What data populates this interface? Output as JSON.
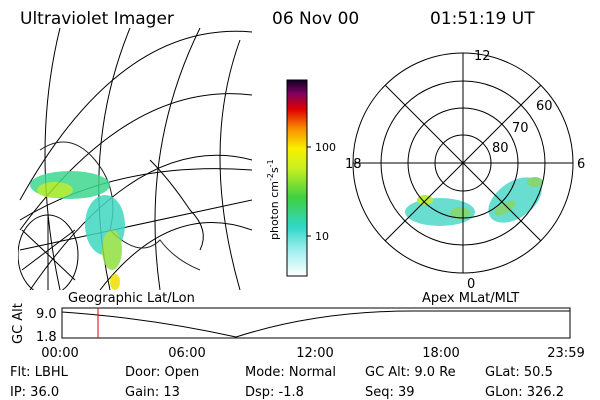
{
  "header": {
    "title": "Ultraviolet Imager",
    "date": "06 Nov 00",
    "time": "01:51:19 UT"
  },
  "colorbar": {
    "label": [
      "photon cm",
      "-2",
      "s",
      "-1"
    ],
    "ticks": [
      "100",
      "10"
    ]
  },
  "polar": {
    "mlt_labels": [
      "12",
      "18",
      "6",
      "0"
    ],
    "lat_labels": [
      "60",
      "70",
      "80"
    ]
  },
  "panels": {
    "left": "Geographic Lat/Lon",
    "right": "Apex MLat/MLT"
  },
  "timeline": {
    "y_label": "GC Alt",
    "y_ticks": [
      "9.0",
      "1.8"
    ],
    "x_ticks": [
      "00:00",
      "06:00",
      "12:00",
      "18:00",
      "23:59"
    ]
  },
  "footer": {
    "rows": [
      [
        "Flt: LBHL",
        "Door: Open",
        "Mode: Normal",
        "GC Alt: 9.0 Re",
        "GLat: 50.5"
      ],
      [
        "IP: 36.0",
        "Gain: 13",
        "Dsp: -1.8",
        "Seq: 39",
        "GLon: 326.2"
      ]
    ]
  }
}
